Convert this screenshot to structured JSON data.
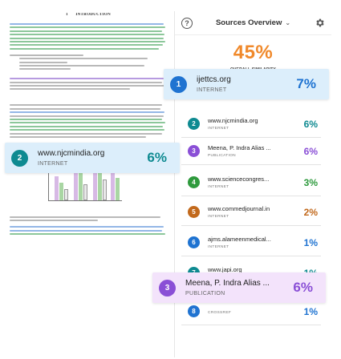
{
  "document": {
    "section_number": "1",
    "section_title": "INTRODUCTION"
  },
  "panel": {
    "title": "Sources Overview",
    "overall_percent": "45%",
    "overall_label": "OVERALL SIMILARITY"
  },
  "colors": {
    "accent_orange": "#f0892b",
    "blue": "#1f73d1",
    "teal": "#0e8a91",
    "purple": "#8a4fd6",
    "green": "#2e9a3d",
    "brown": "#c2691c",
    "highlight_blue": "#dceefb",
    "highlight_purple": "#f3e3fb"
  },
  "sources": [
    {
      "num": "1",
      "name": "ijettcs.org",
      "type": "INTERNET",
      "percent": "7%",
      "color": "#1f73d1"
    },
    {
      "num": "2",
      "name": "www.njcmindia.org",
      "type": "INTERNET",
      "percent": "6%",
      "color": "#0e8a91"
    },
    {
      "num": "3",
      "name": "Meena, P. Indra Alias ...",
      "type": "PUBLICATION",
      "percent": "6%",
      "color": "#8a4fd6"
    },
    {
      "num": "4",
      "name": "www.sciencecongres...",
      "type": "INTERNET",
      "percent": "3%",
      "color": "#2e9a3d"
    },
    {
      "num": "5",
      "name": "www.commedjournal.in",
      "type": "INTERNET",
      "percent": "2%",
      "color": "#c2691c"
    },
    {
      "num": "6",
      "name": "ajms.alameenmedical...",
      "type": "INTERNET",
      "percent": "1%",
      "color": "#1f73d1"
    },
    {
      "num": "7",
      "name": "www.japi.org",
      "type": "INTERNET",
      "percent": "1%",
      "color": "#0e8a91"
    },
    {
      "num": "8",
      "name": "",
      "type": "CROSSREF",
      "percent": "1%",
      "color": "#1f73d1"
    }
  ],
  "floating_cards": [
    {
      "num": "1",
      "name": "ijettcs.org",
      "type": "INTERNET",
      "percent": "7%"
    },
    {
      "num": "2",
      "name": "www.njcmindia.org",
      "type": "INTERNET",
      "percent": "6%"
    },
    {
      "num": "3",
      "name": "Meena, P. Indra Alias ...",
      "type": "PUBLICATION",
      "percent": "6%"
    }
  ]
}
